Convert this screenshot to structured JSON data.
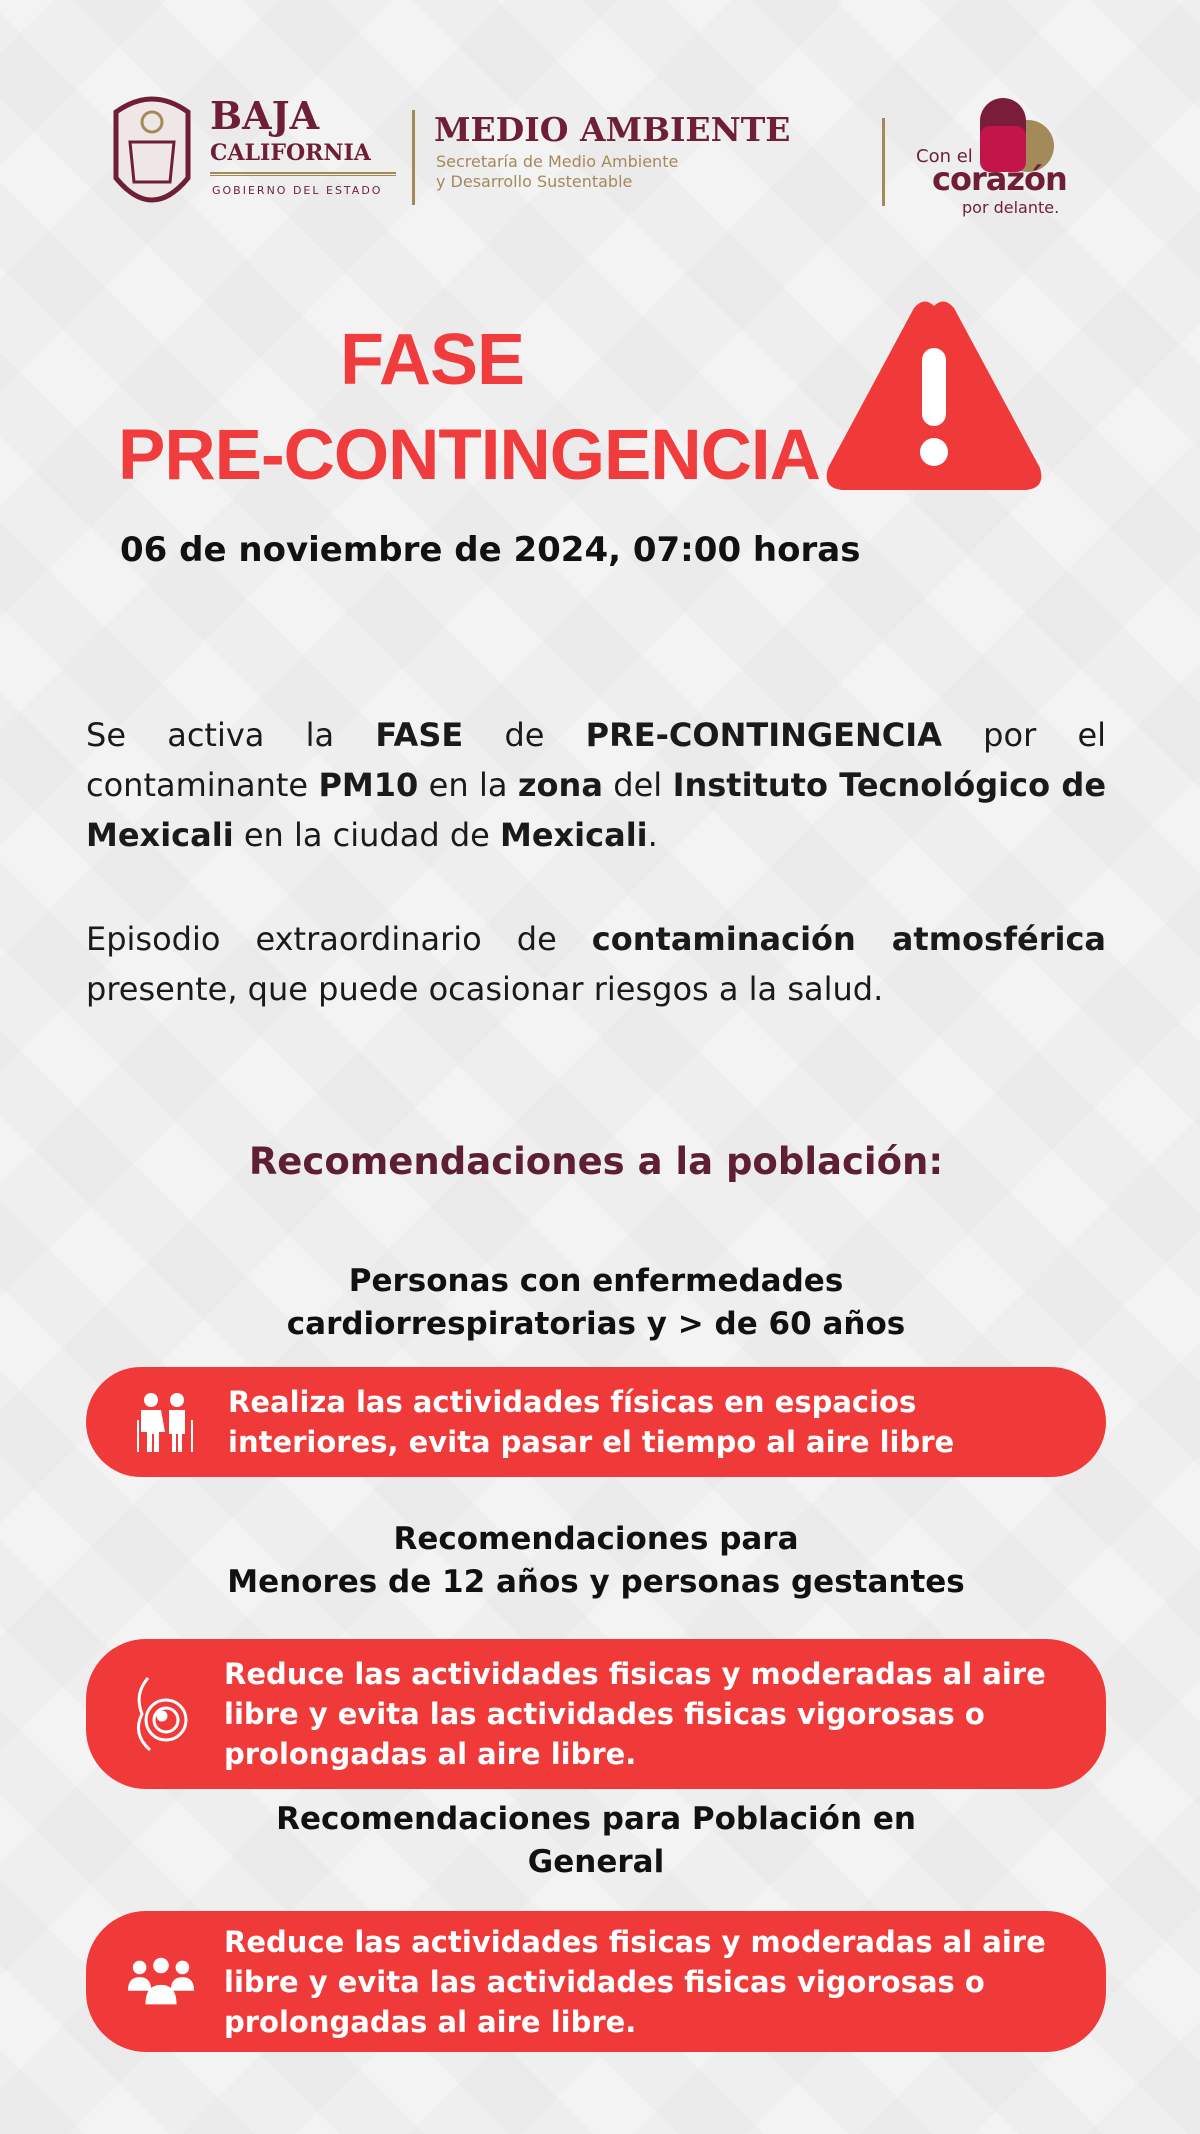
{
  "header": {
    "state_logo": {
      "line1": "BAJA",
      "line2": "CALIFORNIA",
      "line3": "GOBIERNO DEL ESTADO"
    },
    "agency": {
      "title": "MEDIO AMBIENTE",
      "subtitle1": "Secretaría de Medio Ambiente",
      "subtitle2": "y Desarrollo Sustentable"
    },
    "slogan": {
      "line1": "Con el",
      "line2": "corazón",
      "line3": "por delante."
    }
  },
  "alert": {
    "title1": "FASE",
    "title2": "PRE-CONTINGENCIA",
    "icon": "warning-triangle-icon",
    "datetime": "06 de noviembre de 2024, 07:00 horas"
  },
  "body": {
    "p1": [
      {
        "t": "Se activa la "
      },
      {
        "t": "FASE",
        "b": true
      },
      {
        "t": " de "
      },
      {
        "t": "PRE-CONTINGENCIA",
        "b": true
      },
      {
        "t": " por el contaminante "
      },
      {
        "t": "PM10",
        "b": true
      },
      {
        "t": " en la "
      },
      {
        "t": "zona",
        "b": true
      },
      {
        "t": " del "
      },
      {
        "t": "Instituto Tecnológico de Mexicali",
        "b": true
      },
      {
        "t": " en la ciudad de "
      },
      {
        "t": "Mexicali",
        "b": true
      },
      {
        "t": "."
      }
    ],
    "p2": [
      {
        "t": "Episodio extraordinario de "
      },
      {
        "t": "contaminación atmosférica",
        "b": true
      },
      {
        "t": " presente, que puede ocasionar riesgos a la salud."
      }
    ]
  },
  "recommendations": {
    "heading": "Recomendaciones a la población:",
    "groups": [
      {
        "line1": "Personas con enfermedades",
        "line2": "cardiorrespiratorias y > de 60 años",
        "icon": "elderly-couple-icon",
        "text": "Realiza las actividades físicas en espacios interiores, evita pasar el tiempo al aire libre"
      },
      {
        "line1": "Recomendaciones para",
        "line2": "Menores de 12 años y personas gestantes",
        "icon": "pregnant-icon",
        "text": "Reduce las actividades fisicas y moderadas al aire libre y evita las actividades fisicas vigorosas o prolongadas al aire libre."
      },
      {
        "line1": "Recomendaciones para Población en",
        "line2": "General",
        "icon": "people-group-icon",
        "text": "Reduce las actividades fisicas y moderadas al aire libre y evita las actividades fisicas vigorosas o prolongadas al aire libre."
      }
    ]
  },
  "colors": {
    "red": "#f03a3a",
    "maroon": "#6e1f35",
    "gold": "#a4895b"
  }
}
